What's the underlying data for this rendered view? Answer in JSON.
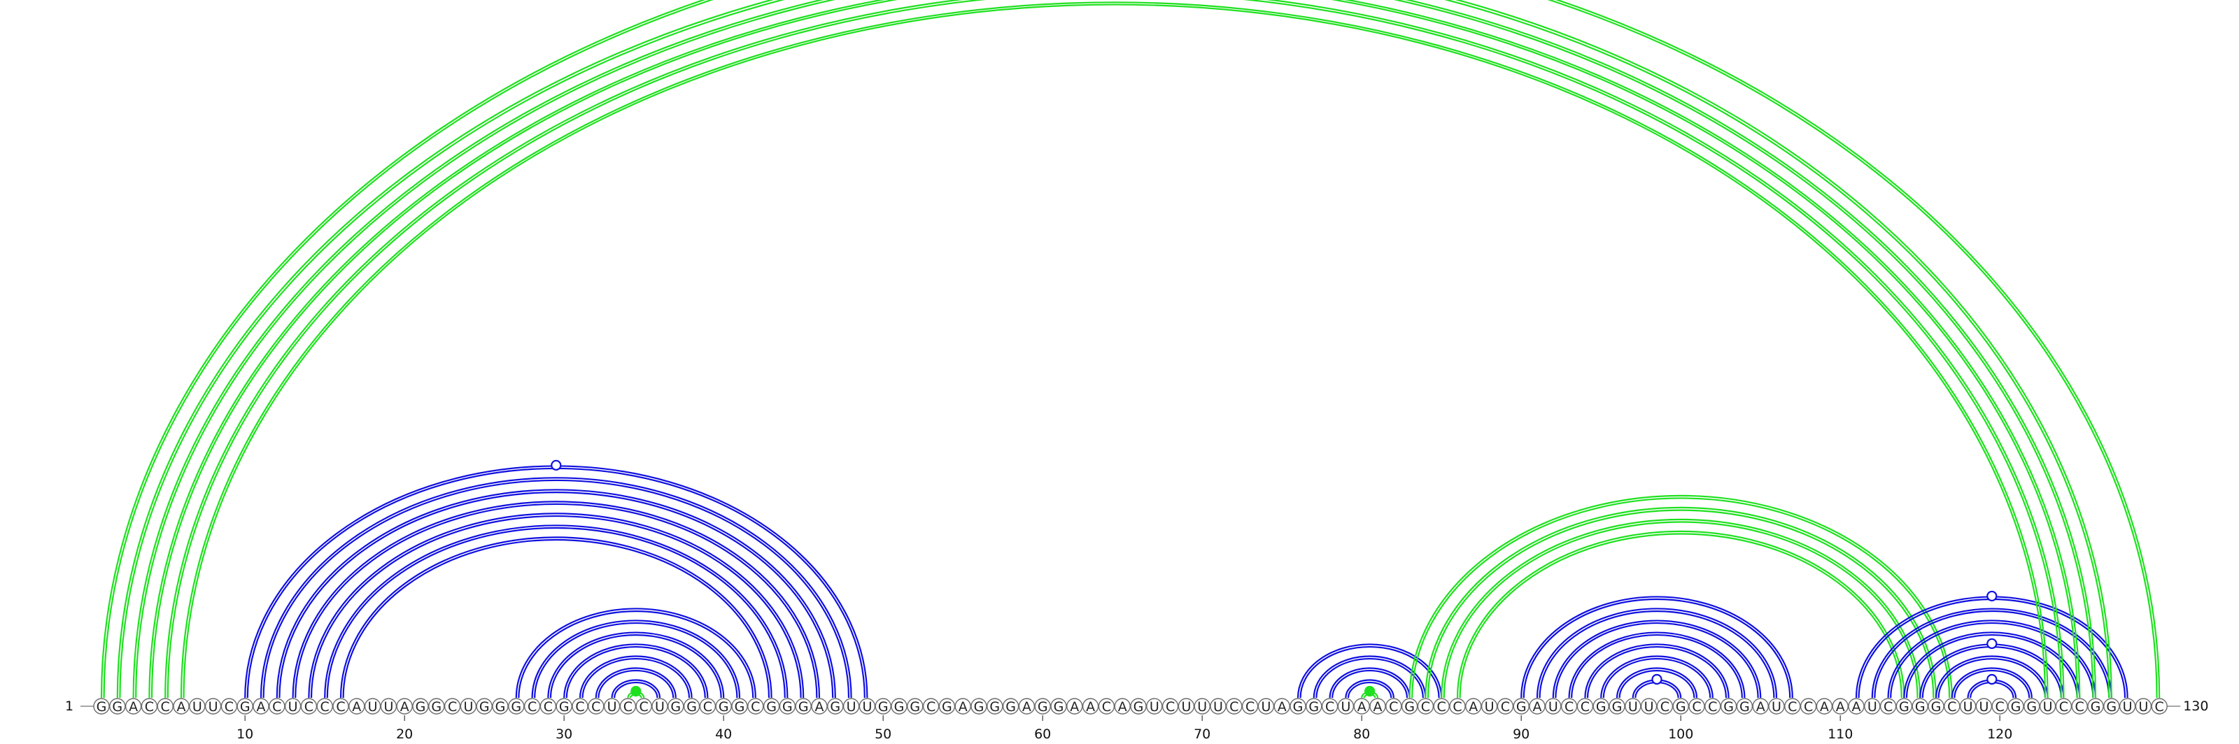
{
  "sequence": "GGACCAUUCGACUCCCAUUAGGCUGGGCCGCCUCCUGGCGGCGGGAGUUGGGCGAGGGAGGAACAGUCUUUCCUAGGCUAACGCCCAUCGAUCCGGUUCGCCGGAUCCAAAUCGGGCUUCGGUCCGGUUC",
  "start_label": "1",
  "end_label": "130",
  "ticks": [
    10,
    20,
    30,
    40,
    50,
    60,
    70,
    80,
    90,
    100,
    110,
    120
  ],
  "colors": {
    "blue": "#1010e0",
    "green": "#1fe01f",
    "circle_stroke": "#6b6b6b",
    "text": "#222222"
  },
  "arcs": [
    {
      "i": 10,
      "j": 49,
      "color": "blue"
    },
    {
      "i": 11,
      "j": 48,
      "color": "blue"
    },
    {
      "i": 12,
      "j": 47,
      "color": "blue"
    },
    {
      "i": 13,
      "j": 46,
      "color": "blue"
    },
    {
      "i": 14,
      "j": 45,
      "color": "blue"
    },
    {
      "i": 15,
      "j": 44,
      "color": "blue"
    },
    {
      "i": 16,
      "j": 43,
      "color": "blue"
    },
    {
      "i": 27,
      "j": 42,
      "color": "blue"
    },
    {
      "i": 28,
      "j": 41,
      "color": "blue"
    },
    {
      "i": 29,
      "j": 40,
      "color": "blue"
    },
    {
      "i": 30,
      "j": 39,
      "color": "blue"
    },
    {
      "i": 31,
      "j": 38,
      "color": "blue"
    },
    {
      "i": 32,
      "j": 37,
      "color": "blue"
    },
    {
      "i": 33,
      "j": 36,
      "color": "blue"
    },
    {
      "i": 34,
      "j": 35,
      "color": "green"
    },
    {
      "i": 76,
      "j": 85,
      "color": "blue"
    },
    {
      "i": 77,
      "j": 84,
      "color": "blue"
    },
    {
      "i": 78,
      "j": 83,
      "color": "blue"
    },
    {
      "i": 79,
      "j": 82,
      "color": "blue"
    },
    {
      "i": 80,
      "j": 81,
      "color": "green"
    },
    {
      "i": 83,
      "j": 117,
      "color": "green"
    },
    {
      "i": 84,
      "j": 116,
      "color": "green"
    },
    {
      "i": 85,
      "j": 115,
      "color": "green"
    },
    {
      "i": 86,
      "j": 114,
      "color": "green"
    },
    {
      "i": 90,
      "j": 107,
      "color": "blue"
    },
    {
      "i": 91,
      "j": 106,
      "color": "blue"
    },
    {
      "i": 92,
      "j": 105,
      "color": "blue"
    },
    {
      "i": 93,
      "j": 104,
      "color": "blue"
    },
    {
      "i": 94,
      "j": 103,
      "color": "blue"
    },
    {
      "i": 95,
      "j": 102,
      "color": "blue"
    },
    {
      "i": 96,
      "j": 101,
      "color": "blue"
    },
    {
      "i": 97,
      "j": 100,
      "color": "blue"
    },
    {
      "i": 111,
      "j": 128,
      "color": "blue"
    },
    {
      "i": 112,
      "j": 127,
      "color": "blue"
    },
    {
      "i": 113,
      "j": 126,
      "color": "blue"
    },
    {
      "i": 114,
      "j": 125,
      "color": "blue"
    },
    {
      "i": 115,
      "j": 124,
      "color": "blue"
    },
    {
      "i": 116,
      "j": 123,
      "color": "blue"
    },
    {
      "i": 117,
      "j": 122,
      "color": "blue"
    },
    {
      "i": 118,
      "j": 121,
      "color": "blue"
    },
    {
      "i": 1,
      "j": 130,
      "color": "green"
    },
    {
      "i": 2,
      "j": 127,
      "color": "green"
    },
    {
      "i": 3,
      "j": 126,
      "color": "green"
    },
    {
      "i": 4,
      "j": 125,
      "color": "green"
    },
    {
      "i": 5,
      "j": 124,
      "color": "green"
    },
    {
      "i": 6,
      "j": 123,
      "color": "green"
    }
  ],
  "markers": [
    {
      "i": 10,
      "j": 49,
      "color": "blue",
      "filled": false
    },
    {
      "i": 34,
      "j": 35,
      "color": "green",
      "filled": true
    },
    {
      "i": 80,
      "j": 81,
      "color": "green",
      "filled": true
    },
    {
      "i": 97,
      "j": 100,
      "color": "blue",
      "filled": false
    },
    {
      "i": 111,
      "j": 128,
      "color": "blue",
      "filled": false
    },
    {
      "i": 115,
      "j": 124,
      "color": "blue",
      "filled": false
    },
    {
      "i": 118,
      "j": 121,
      "color": "blue",
      "filled": false
    }
  ]
}
